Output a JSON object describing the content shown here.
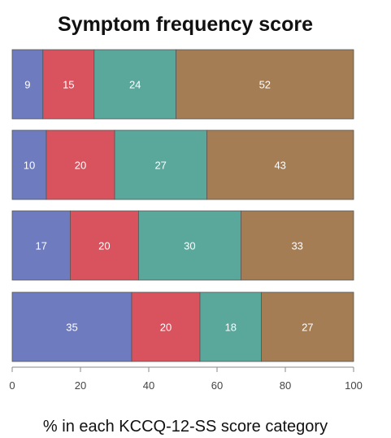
{
  "chart_data": {
    "type": "bar",
    "orientation": "horizontal",
    "stacked": true,
    "title": "Symptom frequency score",
    "xlabel": "% in each KCCQ-12-SS score category",
    "ylabel": "",
    "xlim": [
      0,
      100
    ],
    "xticks": [
      "0",
      "20",
      "40",
      "60",
      "80",
      "100"
    ],
    "grid": false,
    "legend": "none",
    "rows": [
      {
        "values": [
          9,
          15,
          24,
          52
        ],
        "labels": [
          "9",
          "15",
          "24",
          "52"
        ]
      },
      {
        "values": [
          10,
          20,
          27,
          43
        ],
        "labels": [
          "10",
          "20",
          "27",
          "43"
        ]
      },
      {
        "values": [
          17,
          20,
          30,
          33
        ],
        "labels": [
          "17",
          "20",
          "30",
          "33"
        ]
      },
      {
        "values": [
          35,
          20,
          18,
          27
        ],
        "labels": [
          "35",
          "20",
          "18",
          "27"
        ]
      }
    ],
    "segment_colors": [
      "#6f7bbf",
      "#d9535f",
      "#5aa89c",
      "#a57d54"
    ]
  }
}
